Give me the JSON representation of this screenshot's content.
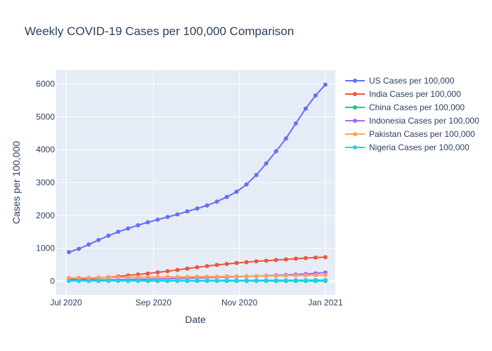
{
  "chart_data": {
    "type": "line",
    "title": "Weekly COVID-19 Cases per 100,000 Comparison",
    "xlabel": "Date",
    "ylabel": "Cases per 100,000",
    "x": [
      "2020-07-03",
      "2020-07-10",
      "2020-07-17",
      "2020-07-24",
      "2020-07-31",
      "2020-08-07",
      "2020-08-14",
      "2020-08-21",
      "2020-08-28",
      "2020-09-04",
      "2020-09-11",
      "2020-09-18",
      "2020-09-25",
      "2020-10-02",
      "2020-10-09",
      "2020-10-16",
      "2020-10-23",
      "2020-10-30",
      "2020-11-06",
      "2020-11-13",
      "2020-11-20",
      "2020-11-27",
      "2020-12-04",
      "2020-12-11",
      "2020-12-18",
      "2020-12-25",
      "2021-01-01"
    ],
    "x_ticks": [
      {
        "date": "2020-07-01",
        "label": "Jul 2020"
      },
      {
        "date": "2020-09-01",
        "label": "Sep 2020"
      },
      {
        "date": "2020-11-01",
        "label": "Nov 2020"
      },
      {
        "date": "2021-01-01",
        "label": "Jan 2021"
      }
    ],
    "x_range": [
      "2020-06-24",
      "2021-01-08"
    ],
    "ylim": [
      -420,
      6420
    ],
    "y_ticks": [
      0,
      1000,
      2000,
      3000,
      4000,
      5000,
      6000
    ],
    "grid": true,
    "legend": "right",
    "colors": {
      "plot_bg": "#e5ecf6",
      "grid": "#ffffff",
      "text": "#2a3f5f"
    },
    "series": [
      {
        "name": "US Cases per 100,000",
        "color": "#636efa",
        "values": [
          880,
          980,
          1110,
          1250,
          1380,
          1500,
          1600,
          1700,
          1790,
          1870,
          1950,
          2030,
          2120,
          2210,
          2300,
          2420,
          2560,
          2720,
          2940,
          3230,
          3580,
          3950,
          4340,
          4800,
          5250,
          5650,
          5980
        ]
      },
      {
        "name": "India Cases per 100,000",
        "color": "#ef553b",
        "values": [
          45,
          55,
          70,
          90,
          115,
          140,
          170,
          200,
          230,
          265,
          300,
          340,
          380,
          420,
          455,
          490,
          520,
          550,
          575,
          600,
          620,
          640,
          660,
          680,
          700,
          715,
          725
        ]
      },
      {
        "name": "China Cases per 100,000",
        "color": "#00cc96",
        "values": [
          6,
          6,
          6,
          6,
          6,
          6,
          6,
          6,
          6,
          6,
          6,
          6,
          6,
          6,
          6,
          6,
          6,
          6,
          6,
          6,
          6,
          6,
          6,
          6,
          6,
          6,
          6
        ]
      },
      {
        "name": "Indonesia Cases per 100,000",
        "color": "#ab63fa",
        "values": [
          25,
          28,
          32,
          36,
          40,
          45,
          50,
          55,
          60,
          66,
          72,
          80,
          88,
          96,
          105,
          114,
          123,
          132,
          142,
          152,
          163,
          175,
          187,
          200,
          215,
          235,
          260
        ]
      },
      {
        "name": "Pakistan Cases per 100,000",
        "color": "#ffa15a",
        "values": [
          95,
          98,
          102,
          106,
          110,
          113,
          116,
          118,
          120,
          122,
          124,
          126,
          128,
          131,
          134,
          137,
          140,
          144,
          148,
          152,
          156,
          160,
          165,
          170,
          175,
          180,
          185
        ]
      },
      {
        "name": "Nigeria Cases per 100,000",
        "color": "#19d3f3",
        "values": [
          8,
          9,
          10,
          11,
          12,
          13,
          14,
          15,
          16,
          16,
          17,
          17,
          18,
          18,
          19,
          19,
          20,
          20,
          21,
          21,
          22,
          23,
          24,
          25,
          26,
          28,
          30
        ]
      }
    ]
  }
}
